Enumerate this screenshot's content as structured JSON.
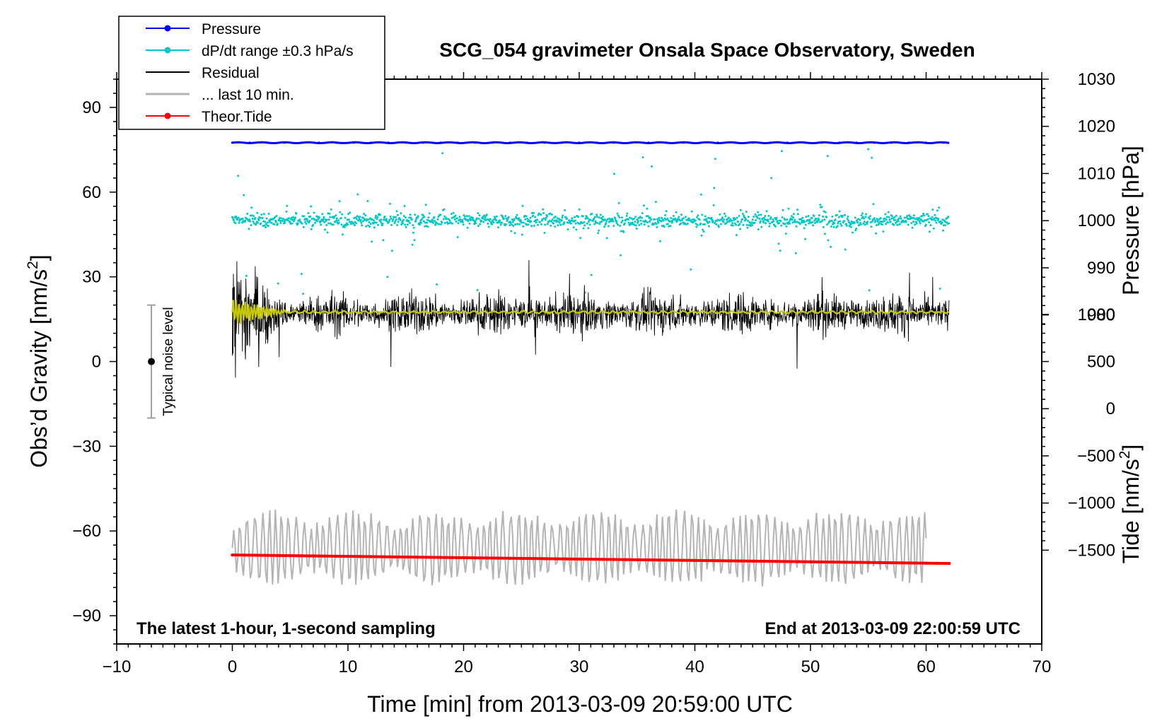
{
  "chart_data": {
    "type": "line",
    "title": "SCG_054 gravimeter Onsala Space Observatory, Sweden",
    "xlabel": "Time [min] from 2013-03-09 20:59:00 UTC",
    "ylabel_left": "Obs’d Gravity [nm/s²]",
    "ylabel_right_top": "Pressure [hPa]",
    "ylabel_right_bottom": "Tide [nm/s²]",
    "xlim": [
      -10,
      70
    ],
    "ylim": [
      -100,
      100
    ],
    "x_ticks": [
      -10,
      0,
      10,
      20,
      30,
      40,
      50,
      60,
      70
    ],
    "x_tick_labels": [
      "−10",
      "0",
      "10",
      "20",
      "30",
      "40",
      "50",
      "60",
      "70"
    ],
    "y_ticks": [
      90,
      60,
      30,
      0,
      -30,
      -60,
      -90
    ],
    "y_tick_labels": [
      "90",
      "60",
      "30",
      "0",
      "−30",
      "−60",
      "−90"
    ],
    "pressure_axis": {
      "ticks": [
        1030,
        1020,
        1010,
        1000,
        990,
        980
      ],
      "tick_labels": [
        "1030",
        "1020",
        "1010",
        "1000",
        "990",
        "980"
      ],
      "gravity_at_1030": 100,
      "gravity_per_hPa": 1.67
    },
    "tide_axis": {
      "ticks": [
        1000,
        500,
        0,
        -500,
        -1000,
        -1500
      ],
      "tick_labels": [
        "1000",
        "500",
        "0",
        "−500",
        "−1000",
        "−1500"
      ],
      "gravity_at_1000": 16.7,
      "gravity_per_unit": 0.0334
    },
    "legend": [
      {
        "label": "Pressure",
        "color": "#0000ff",
        "marker": true
      },
      {
        "label": "dP/dt range ±0.3 hPa/s",
        "color": "#00c8c8",
        "marker": true
      },
      {
        "label": "Residual",
        "color": "#000000",
        "marker": false
      },
      {
        "label": "... last 10 min.",
        "color": "#b4b4b4",
        "marker": false
      },
      {
        "label": "Theor.Tide",
        "color": "#ff0000",
        "marker": true
      }
    ],
    "series": [
      {
        "name": "Pressure",
        "color": "#0000ff",
        "x_range": [
          0,
          62
        ],
        "y_gravity_units": 77.5,
        "pressure_hPa": 1016.2
      },
      {
        "name": "dP/dt",
        "color": "#00c8c8",
        "x_range": [
          0,
          62
        ],
        "center": 50,
        "spread": 8
      },
      {
        "name": "Residual",
        "color": "#000000",
        "x_range": [
          0,
          62
        ],
        "center": 17,
        "amplitude": 13
      },
      {
        "name": "Residual smoothed",
        "color": "#c8c800",
        "x_range": [
          0,
          62
        ],
        "center": 17.5
      },
      {
        "name": "... last 10 min.",
        "color": "#b4b4b4",
        "x_range": [
          0,
          60
        ],
        "center": -66,
        "amplitude": 13
      },
      {
        "name": "Theor.Tide",
        "color": "#ff0000",
        "x": [
          0,
          62
        ],
        "y": [
          -68.5,
          -71.5
        ]
      }
    ],
    "noise_bar": {
      "label": "Typical noise level",
      "x": -7,
      "center": 0,
      "range": [
        -20,
        20
      ]
    },
    "footer_left": "The latest 1-hour, 1-second sampling",
    "footer_right": "End at 2013-03-09 22:00:59 UTC"
  }
}
